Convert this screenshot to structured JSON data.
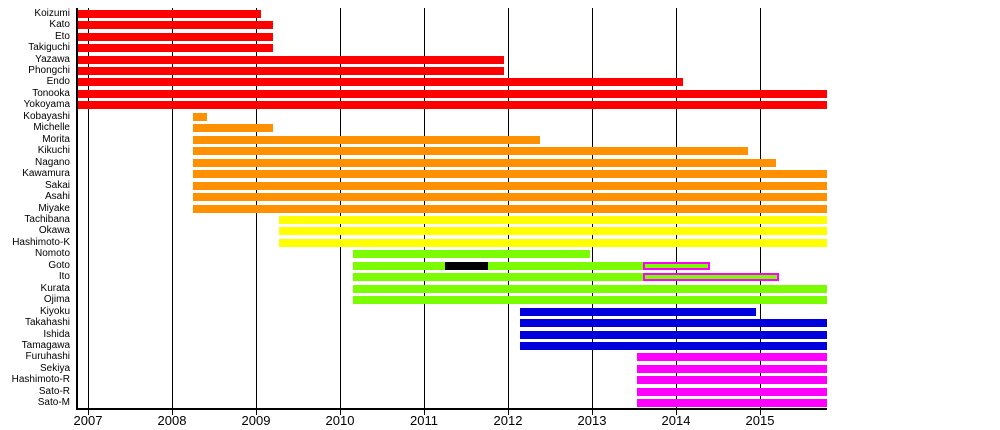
{
  "chart_data": {
    "type": "gantt",
    "title": "",
    "xlabel": "",
    "ylabel": "",
    "grid": "vertical",
    "x_axis": {
      "min": 2006.869,
      "max": 2015.798,
      "ticks": [
        2007,
        2008,
        2009,
        2010,
        2011,
        2012,
        2013,
        2014,
        2015
      ],
      "tick_labels": [
        "2007",
        "2008",
        "2009",
        "2010",
        "2011",
        "2012",
        "2013",
        "2014",
        "2015"
      ]
    },
    "colors": {
      "red": "#FF0000",
      "orange": "#FF9100",
      "yellow": "#FFFF00",
      "green": "#7CFC00",
      "blue": "#0000DD",
      "magenta": "#FF00FF",
      "black": "#000000"
    },
    "rows": [
      {
        "label": "Koizumi",
        "segments": [
          {
            "start": 2006.87,
            "end": 2009.06,
            "color": "red"
          }
        ]
      },
      {
        "label": "Kato",
        "segments": [
          {
            "start": 2006.87,
            "end": 2009.2,
            "color": "red"
          }
        ]
      },
      {
        "label": "Eto",
        "segments": [
          {
            "start": 2006.87,
            "end": 2009.2,
            "color": "red"
          }
        ]
      },
      {
        "label": "Takiguchi",
        "segments": [
          {
            "start": 2006.87,
            "end": 2009.2,
            "color": "red"
          }
        ]
      },
      {
        "label": "Yazawa",
        "segments": [
          {
            "start": 2006.87,
            "end": 2011.95,
            "color": "red"
          }
        ]
      },
      {
        "label": "Phongchi",
        "segments": [
          {
            "start": 2006.87,
            "end": 2011.95,
            "color": "red"
          }
        ]
      },
      {
        "label": "Endo",
        "segments": [
          {
            "start": 2006.87,
            "end": 2014.08,
            "color": "red"
          }
        ]
      },
      {
        "label": "Tonooka",
        "segments": [
          {
            "start": 2006.87,
            "end": 2015.8,
            "color": "red"
          }
        ]
      },
      {
        "label": "Yokoyama",
        "segments": [
          {
            "start": 2006.87,
            "end": 2015.8,
            "color": "red"
          }
        ]
      },
      {
        "label": "Kobayashi",
        "segments": [
          {
            "start": 2008.25,
            "end": 2008.42,
            "color": "orange"
          }
        ]
      },
      {
        "label": "Michelle",
        "segments": [
          {
            "start": 2008.25,
            "end": 2009.2,
            "color": "orange"
          }
        ]
      },
      {
        "label": "Morita",
        "segments": [
          {
            "start": 2008.25,
            "end": 2012.38,
            "color": "orange"
          }
        ]
      },
      {
        "label": "Kikuchi",
        "segments": [
          {
            "start": 2008.25,
            "end": 2014.86,
            "color": "orange"
          }
        ]
      },
      {
        "label": "Nagano",
        "segments": [
          {
            "start": 2008.25,
            "end": 2015.19,
            "color": "orange"
          }
        ]
      },
      {
        "label": "Kawamura",
        "segments": [
          {
            "start": 2008.25,
            "end": 2015.8,
            "color": "orange"
          }
        ]
      },
      {
        "label": "Sakai",
        "segments": [
          {
            "start": 2008.25,
            "end": 2015.8,
            "color": "orange"
          }
        ]
      },
      {
        "label": "Asahi",
        "segments": [
          {
            "start": 2008.25,
            "end": 2015.8,
            "color": "orange"
          }
        ]
      },
      {
        "label": "Miyake",
        "segments": [
          {
            "start": 2008.25,
            "end": 2015.8,
            "color": "orange"
          }
        ]
      },
      {
        "label": "Tachibana",
        "segments": [
          {
            "start": 2009.27,
            "end": 2015.8,
            "color": "yellow"
          }
        ]
      },
      {
        "label": "Okawa",
        "segments": [
          {
            "start": 2009.27,
            "end": 2015.8,
            "color": "yellow"
          }
        ]
      },
      {
        "label": "Hashimoto-K",
        "segments": [
          {
            "start": 2009.27,
            "end": 2015.8,
            "color": "yellow"
          }
        ]
      },
      {
        "label": "Nomoto",
        "segments": [
          {
            "start": 2010.15,
            "end": 2012.98,
            "color": "green"
          }
        ]
      },
      {
        "label": "Goto",
        "segments": [
          {
            "start": 2010.15,
            "end": 2013.61,
            "color": "green"
          },
          {
            "start": 2011.25,
            "end": 2011.76,
            "color": "black",
            "overlay": true
          },
          {
            "start": 2013.61,
            "end": 2014.4,
            "color": "green",
            "border": "magenta"
          }
        ]
      },
      {
        "label": "Ito",
        "segments": [
          {
            "start": 2010.15,
            "end": 2013.61,
            "color": "green"
          },
          {
            "start": 2013.61,
            "end": 2015.23,
            "color": "green",
            "border": "magenta"
          }
        ]
      },
      {
        "label": "Kurata",
        "segments": [
          {
            "start": 2010.15,
            "end": 2015.8,
            "color": "green"
          }
        ]
      },
      {
        "label": "Ojima",
        "segments": [
          {
            "start": 2010.15,
            "end": 2015.8,
            "color": "green"
          }
        ]
      },
      {
        "label": "Kiyoku",
        "segments": [
          {
            "start": 2012.14,
            "end": 2014.95,
            "color": "blue"
          }
        ]
      },
      {
        "label": "Takahashi",
        "segments": [
          {
            "start": 2012.14,
            "end": 2015.8,
            "color": "blue"
          }
        ]
      },
      {
        "label": "Ishida",
        "segments": [
          {
            "start": 2012.14,
            "end": 2015.8,
            "color": "blue"
          }
        ]
      },
      {
        "label": "Tamagawa",
        "segments": [
          {
            "start": 2012.14,
            "end": 2015.8,
            "color": "blue"
          }
        ]
      },
      {
        "label": "Furuhashi",
        "segments": [
          {
            "start": 2013.54,
            "end": 2015.8,
            "color": "magenta"
          }
        ]
      },
      {
        "label": "Sekiya",
        "segments": [
          {
            "start": 2013.54,
            "end": 2015.8,
            "color": "magenta"
          }
        ]
      },
      {
        "label": "Hashimoto-R",
        "segments": [
          {
            "start": 2013.54,
            "end": 2015.8,
            "color": "magenta"
          }
        ]
      },
      {
        "label": "Sato-R",
        "segments": [
          {
            "start": 2013.54,
            "end": 2015.8,
            "color": "magenta"
          }
        ]
      },
      {
        "label": "Sato-M",
        "segments": [
          {
            "start": 2013.54,
            "end": 2015.8,
            "color": "magenta"
          }
        ]
      }
    ]
  }
}
